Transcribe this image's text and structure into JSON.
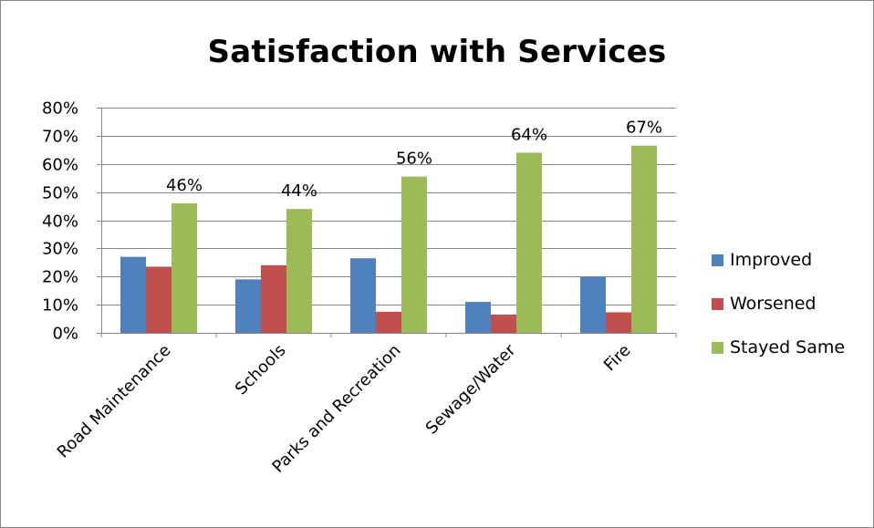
{
  "chart_data": {
    "type": "bar",
    "title": "Satisfaction with Services",
    "categories": [
      "Road Maintenance",
      "Schools",
      "Parks and Recreation",
      "Sewage/Water",
      "Fire"
    ],
    "series": [
      {
        "name": "Improved",
        "color": "#4F81BD",
        "values": [
          0.27,
          0.19,
          0.265,
          0.11,
          0.2
        ]
      },
      {
        "name": "Worsened",
        "color": "#C0504D",
        "values": [
          0.235,
          0.24,
          0.075,
          0.065,
          0.073
        ]
      },
      {
        "name": "Stayed Same",
        "color": "#9BBB59",
        "values": [
          0.46,
          0.44,
          0.555,
          0.64,
          0.665
        ],
        "data_labels": [
          "46%",
          "44%",
          "56%",
          "64%",
          "67%"
        ]
      }
    ],
    "ylim": [
      0,
      0.8
    ],
    "yticks": [
      "0%",
      "10%",
      "20%",
      "30%",
      "40%",
      "50%",
      "60%",
      "70%",
      "80%"
    ],
    "grid": true,
    "legend_position": "right",
    "xlabel": "",
    "ylabel": ""
  }
}
